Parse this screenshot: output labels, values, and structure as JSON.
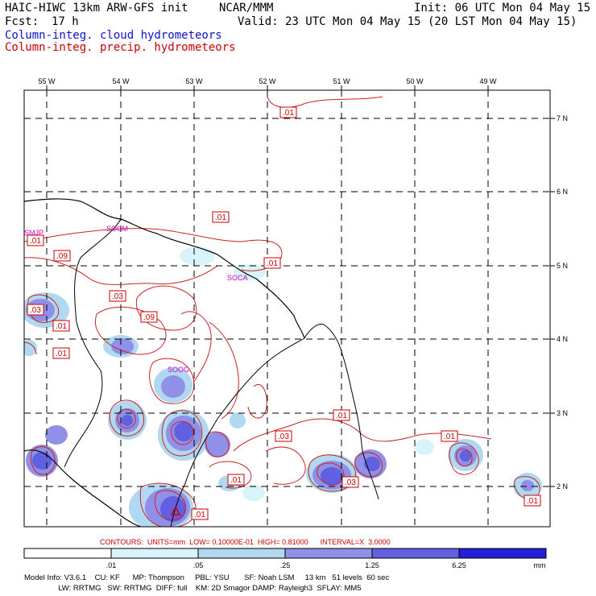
{
  "header": {
    "model_title": "HAIC-HIWC 13km ARW-GFS init",
    "org": "NCAR/MMM",
    "init": "Init: 06 UTC Mon 04 May 15",
    "fcst_label": "Fcst:",
    "fcst_value": "17 h",
    "valid": "Valid: 23 UTC Mon 04 May 15 (20 LST Mon 04 May 15)",
    "field1": "Column-integ. cloud hydrometeors",
    "field2": "Column-integ. precip. hydrometeors"
  },
  "colors": {
    "field1": "#1010cc",
    "field2": "#cc0000",
    "contour": "#cc2222",
    "coast": "#000000",
    "station": "#cc00cc"
  },
  "map": {
    "lon_labels": [
      "55 W",
      "54 W",
      "53 W",
      "52 W",
      "51 W",
      "50 W",
      "49 W"
    ],
    "lat_labels": [
      "7 N",
      "6 N",
      "5 N",
      "4 N",
      "3 N",
      "2 N"
    ],
    "contour_labels": [
      ".01",
      ".01",
      ".01",
      ".09",
      ".03",
      ".03",
      ".09",
      ".01",
      ".01",
      ".01",
      ".03",
      ".01",
      ".03",
      ".01",
      ".01",
      ".01"
    ],
    "stations": [
      "SMJP",
      "SOCM",
      "SOCA",
      "SOOG"
    ]
  },
  "contour_info": "CONTOURS:  UNITS=mm  LOW= 0.10000E-01  HIGH= 0.81000      INTERVAL=X  3.0000",
  "colorbar": {
    "ticks": [
      ".01",
      ".05",
      ".25",
      "1.25",
      "6.25"
    ],
    "unit": "mm",
    "colors": [
      "#ffffff",
      "#d8f4fa",
      "#b0d8f0",
      "#9090e8",
      "#6060e0",
      "#2020d8"
    ]
  },
  "model_info": {
    "line1": "Model Info: V3.6.1    CU: KF      MP: Thompson     PBL: YSU       SF: Noah LSM     13 km   51 levels  60 sec",
    "line2": "                LW: RRTMG   SW: RRTMG  DIFF: full    KM: 2D Smagor DAMP: Rayleigh3  SFLAY: MM5"
  }
}
